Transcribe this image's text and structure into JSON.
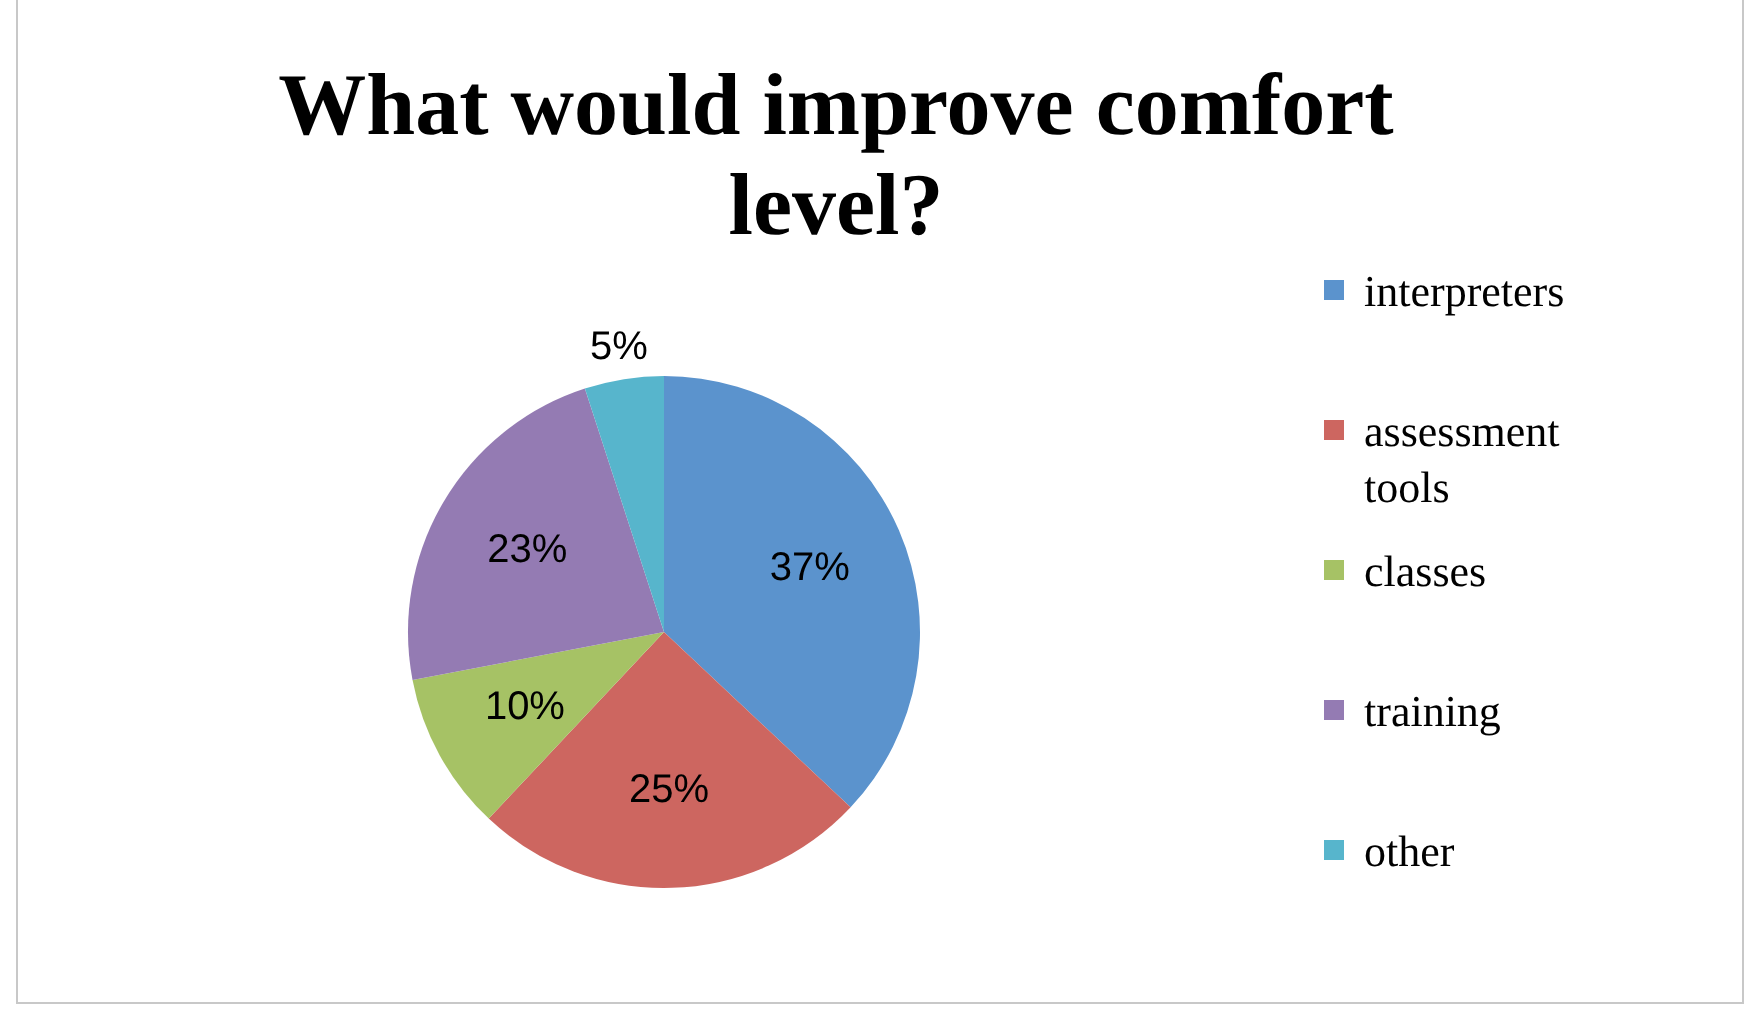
{
  "chart_data": {
    "type": "pie",
    "title": "What would improve comfort level?",
    "categories": [
      "interpreters",
      "assessment tools",
      "classes",
      "training",
      "other"
    ],
    "values": [
      37,
      25,
      10,
      23,
      5
    ],
    "colors": [
      "#5b93cd",
      "#cd6660",
      "#a6c265",
      "#947bb3",
      "#57b5cc"
    ],
    "value_labels": [
      "37%",
      "25%",
      "10%",
      "23%",
      "5%"
    ],
    "legend": "right"
  }
}
